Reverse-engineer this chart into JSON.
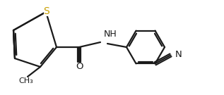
{
  "background_color": "#ffffff",
  "atom_color": "#1a1a1a",
  "S_color": "#c8a000",
  "line_width": 1.6,
  "font_size": 8.5,
  "figsize": [
    3.17,
    1.35
  ],
  "dpi": 100,
  "S_label": "S",
  "NH_label": "NH",
  "O_label": "O",
  "N_label": "N",
  "Me_label": "CH₃"
}
